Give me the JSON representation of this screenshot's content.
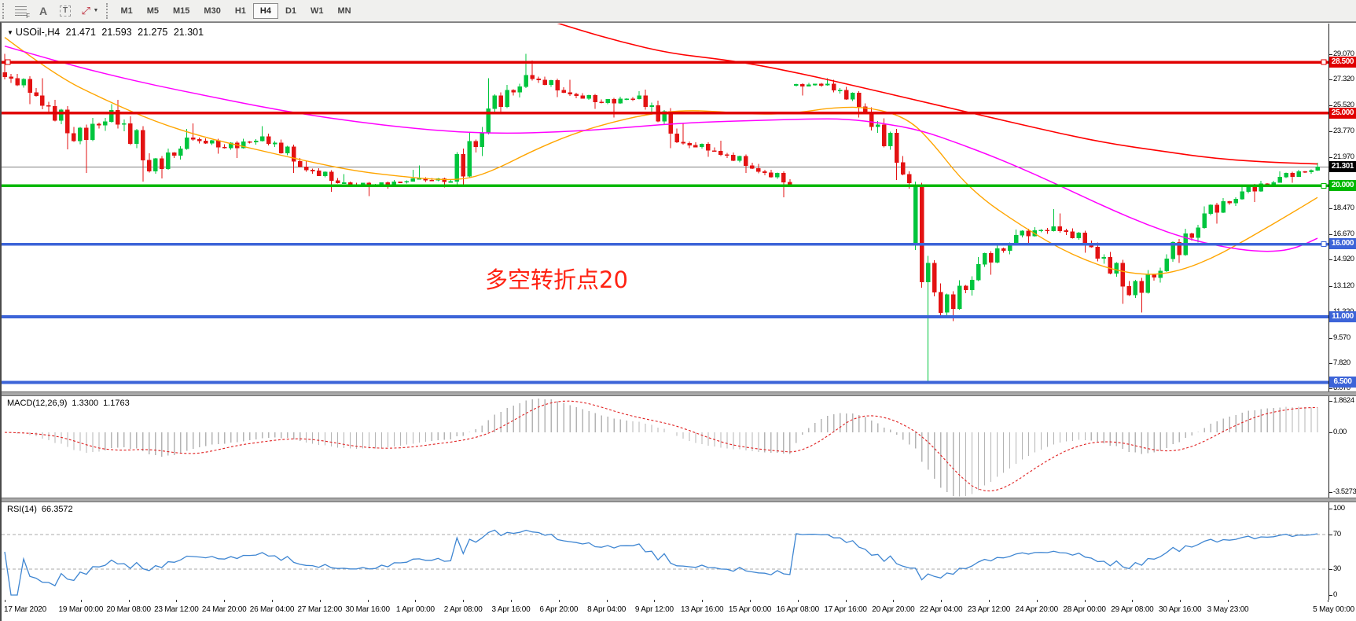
{
  "toolbar": {
    "icons": {
      "fibonacci_glyph": "F",
      "text_glyph": "A",
      "text_label_glyph": "T",
      "arrows_glyph": "⤢",
      "caret_glyph": "▼"
    },
    "timeframes": [
      "M1",
      "M5",
      "M15",
      "M30",
      "H1",
      "H4",
      "D1",
      "W1",
      "MN"
    ],
    "active_timeframe": "H4"
  },
  "chart": {
    "symbol_label": "USOil-,H4",
    "open": "21.471",
    "high": "21.593",
    "low": "21.275",
    "close": "21.301",
    "annotation": "多空转折点20"
  },
  "macd_panel": {
    "label": "MACD(12,26,9)",
    "value": "1.3300",
    "signal": "1.1763"
  },
  "rsi_panel": {
    "label": "RSI(14)",
    "value": "66.3572"
  },
  "chart_data": {
    "type": "candlestick",
    "symbol": "USOil-",
    "timeframe": "H4",
    "title": "USOil-,H4 21.471 21.593 21.275 21.301",
    "colors": {
      "bull": "#00c53e",
      "bear": "#e31212",
      "ma_fast": "#ffa500",
      "ma_medium": "#ff00ff",
      "ma_slow": "#ff0000",
      "hline_red": "#e00000",
      "hline_green": "#00b800",
      "hline_blue": "#3c64d8",
      "price_line": "#808080",
      "macd_histogram": "#b4b4b4",
      "macd_signal": "#e02020",
      "rsi_line": "#3f86d2"
    },
    "price_axis": {
      "top": 31.15,
      "bottom": 5.87,
      "ticks": [
        "29.070",
        "27.320",
        "25.520",
        "23.770",
        "21.970",
        "18.470",
        "16.670",
        "14.920",
        "13.120",
        "11.320",
        "9.570",
        "7.820",
        "6.070"
      ],
      "badges": [
        {
          "label": "28.500",
          "value": 28.5,
          "color": "#e00000"
        },
        {
          "label": "25.000",
          "value": 25.0,
          "color": "#e00000"
        },
        {
          "label": "21.301",
          "value": 21.301,
          "color": "#000000"
        },
        {
          "label": "20.000",
          "value": 20.0,
          "color": "#00b800"
        },
        {
          "label": "16.000",
          "value": 16.0,
          "color": "#3c64d8"
        },
        {
          "label": "11.000",
          "value": 11.0,
          "color": "#3c64d8"
        },
        {
          "label": "6.500",
          "value": 6.5,
          "color": "#3c64d8"
        }
      ]
    },
    "price_line": {
      "price": 21.301
    },
    "hlines": [
      {
        "price": 28.5,
        "color": "#e00000",
        "width": 3.5,
        "handles": [
          "left",
          "right"
        ]
      },
      {
        "price": 25.0,
        "color": "#e00000",
        "width": 3.5,
        "handles": []
      },
      {
        "price": 20.0,
        "color": "#00b800",
        "width": 3.5,
        "handles": [
          "right"
        ]
      },
      {
        "price": 16.0,
        "color": "#3c64d8",
        "width": 3.5,
        "handles": [
          "right"
        ]
      },
      {
        "price": 11.0,
        "color": "#3c64d8",
        "width": 4,
        "handles": []
      },
      {
        "price": 6.5,
        "color": "#3c64d8",
        "width": 4,
        "handles": []
      }
    ],
    "time_ticks": [
      "17 Mar 2020",
      "19 Mar 00:00",
      "20 Mar 08:00",
      "23 Mar 12:00",
      "24 Mar 20:00",
      "26 Mar 04:00",
      "27 Mar 12:00",
      "30 Mar 16:00",
      "1 Apr 00:00",
      "2 Apr 08:00",
      "3 Apr 16:00",
      "6 Apr 20:00",
      "8 Apr 04:00",
      "9 Apr 12:00",
      "13 Apr 16:00",
      "15 Apr 00:00",
      "16 Apr 08:00",
      "17 Apr 16:00",
      "20 Apr 20:00",
      "22 Apr 04:00",
      "23 Apr 12:00",
      "24 Apr 20:00",
      "28 Apr 00:00",
      "29 Apr 08:00",
      "30 Apr 16:00",
      "3 May 23:00",
      "5 May 00:00"
    ],
    "daily_candles": [
      {
        "d": "17 Mar",
        "o": 27.8,
        "h": 29.07,
        "l": 25.6,
        "c": 26.2
      },
      {
        "d": "18 Mar",
        "o": 26.2,
        "h": 27.4,
        "l": 22.5,
        "c": 23.1
      },
      {
        "d": "19 Mar",
        "o": 23.1,
        "h": 25.6,
        "l": 20.9,
        "c": 25.2
      },
      {
        "d": "20 Mar",
        "o": 25.2,
        "h": 25.9,
        "l": 20.3,
        "c": 21.0
      },
      {
        "d": "23 Mar",
        "o": 21.0,
        "h": 23.9,
        "l": 20.5,
        "c": 23.3
      },
      {
        "d": "24 Mar",
        "o": 23.3,
        "h": 24.3,
        "l": 22.2,
        "c": 22.6
      },
      {
        "d": "25 Mar",
        "o": 22.6,
        "h": 24.1,
        "l": 21.9,
        "c": 23.4
      },
      {
        "d": "26 Mar",
        "o": 23.4,
        "h": 23.6,
        "l": 20.9,
        "c": 21.3
      },
      {
        "d": "27 Mar",
        "o": 21.3,
        "h": 21.7,
        "l": 19.6,
        "c": 20.2
      },
      {
        "d": "30 Mar",
        "o": 20.2,
        "h": 20.8,
        "l": 19.3,
        "c": 20.0
      },
      {
        "d": "31 Mar",
        "o": 20.0,
        "h": 21.1,
        "l": 19.8,
        "c": 20.5
      },
      {
        "d": "1 Apr",
        "o": 20.5,
        "h": 21.4,
        "l": 19.9,
        "c": 20.3
      },
      {
        "d": "2 Apr",
        "o": 20.3,
        "h": 27.4,
        "l": 20.1,
        "c": 25.3
      },
      {
        "d": "3 Apr",
        "o": 25.3,
        "h": 29.07,
        "l": 24.9,
        "c": 27.6
      },
      {
        "d": "6 Apr",
        "o": 27.6,
        "h": 28.6,
        "l": 26.1,
        "c": 26.4
      },
      {
        "d": "7 Apr",
        "o": 26.4,
        "h": 27.3,
        "l": 25.3,
        "c": 25.7
      },
      {
        "d": "8 Apr",
        "o": 25.7,
        "h": 26.5,
        "l": 24.7,
        "c": 26.2
      },
      {
        "d": "9 Apr",
        "o": 26.2,
        "h": 26.6,
        "l": 22.6,
        "c": 23.0
      },
      {
        "d": "13 Apr",
        "o": 23.0,
        "h": 24.3,
        "l": 22.0,
        "c": 22.4
      },
      {
        "d": "14 Apr",
        "o": 22.4,
        "h": 23.1,
        "l": 20.9,
        "c": 21.2
      },
      {
        "d": "15 Apr",
        "o": 21.2,
        "h": 21.5,
        "l": 19.2,
        "c": 20.1
      },
      {
        "d": "16 Apr",
        "o": 26.9,
        "h": 27.4,
        "l": 26.2,
        "c": 27.0
      },
      {
        "d": "17 Apr",
        "o": 27.0,
        "h": 27.3,
        "l": 24.7,
        "c": 25.1
      },
      {
        "d": "20 Apr",
        "o": 25.1,
        "h": 25.4,
        "l": 20.4,
        "c": 20.8
      },
      {
        "d": "21 Apr",
        "bars": [
          [
            20.8,
            21.0,
            19.8,
            20.2
          ],
          [
            15.9,
            20.3,
            15.6,
            20.1
          ],
          [
            20.1,
            20.2,
            13.0,
            13.4
          ],
          [
            13.4,
            15.2,
            6.5,
            14.7
          ],
          [
            14.7,
            14.9,
            12.4,
            12.7
          ],
          [
            12.7,
            13.3,
            10.9,
            11.3
          ]
        ]
      },
      {
        "d": "22 Apr",
        "o": 11.3,
        "h": 15.1,
        "l": 10.7,
        "c": 14.6
      },
      {
        "d": "23 Apr",
        "o": 14.6,
        "h": 17.0,
        "l": 13.9,
        "c": 16.6
      },
      {
        "d": "24 Apr",
        "o": 16.6,
        "h": 18.4,
        "l": 15.9,
        "c": 17.2
      },
      {
        "d": "27 Apr",
        "o": 17.2,
        "h": 18.1,
        "l": 15.4,
        "c": 15.8
      },
      {
        "d": "28 Apr",
        "o": 15.8,
        "h": 16.1,
        "l": 11.9,
        "c": 12.5
      },
      {
        "d": "29 Apr",
        "o": 12.5,
        "h": 15.3,
        "l": 11.3,
        "c": 15.0
      },
      {
        "d": "30 Apr",
        "o": 15.0,
        "h": 18.6,
        "l": 14.7,
        "c": 18.1
      },
      {
        "d": "1 May",
        "o": 18.1,
        "h": 20.0,
        "l": 17.4,
        "c": 19.6
      },
      {
        "d": "4 May",
        "o": 19.6,
        "h": 21.0,
        "l": 18.9,
        "c": 20.6
      },
      {
        "d": "5 May",
        "o": 20.6,
        "h": 21.6,
        "l": 20.2,
        "c": 21.301
      }
    ],
    "moving_averages": [
      {
        "name": "ma-fast-orange",
        "color": "#ffa500",
        "width": 1.4,
        "points": [
          [
            0,
            30.2
          ],
          [
            8,
            27.6
          ],
          [
            16,
            25.9
          ],
          [
            24,
            24.4
          ],
          [
            32,
            23.3
          ],
          [
            40,
            22.5
          ],
          [
            48,
            21.7
          ],
          [
            56,
            21.0
          ],
          [
            64,
            20.6
          ],
          [
            70,
            20.4
          ],
          [
            74,
            20.5
          ],
          [
            78,
            21.1
          ],
          [
            84,
            22.4
          ],
          [
            90,
            23.5
          ],
          [
            96,
            24.3
          ],
          [
            102,
            24.9
          ],
          [
            108,
            25.2
          ],
          [
            114,
            25.1
          ],
          [
            120,
            24.9
          ],
          [
            126,
            25.0
          ],
          [
            132,
            25.4
          ],
          [
            138,
            25.4
          ],
          [
            144,
            24.6
          ],
          [
            148,
            22.8
          ],
          [
            152,
            20.6
          ],
          [
            156,
            19.0
          ],
          [
            160,
            17.8
          ],
          [
            164,
            16.7
          ],
          [
            168,
            15.7
          ],
          [
            172,
            14.9
          ],
          [
            176,
            14.3
          ],
          [
            180,
            13.95
          ],
          [
            184,
            13.9
          ],
          [
            188,
            14.3
          ],
          [
            192,
            15.0
          ],
          [
            196,
            15.9
          ],
          [
            200,
            16.9
          ],
          [
            204,
            17.9
          ],
          [
            209,
            19.2
          ]
        ]
      },
      {
        "name": "ma-medium-magenta",
        "color": "#ff00ff",
        "width": 1.5,
        "points": [
          [
            0,
            29.6
          ],
          [
            8,
            28.6
          ],
          [
            16,
            27.7
          ],
          [
            24,
            26.9
          ],
          [
            32,
            26.2
          ],
          [
            40,
            25.5
          ],
          [
            48,
            24.9
          ],
          [
            56,
            24.4
          ],
          [
            64,
            24.0
          ],
          [
            72,
            23.7
          ],
          [
            80,
            23.6
          ],
          [
            88,
            23.7
          ],
          [
            96,
            23.9
          ],
          [
            104,
            24.2
          ],
          [
            112,
            24.4
          ],
          [
            120,
            24.5
          ],
          [
            128,
            24.6
          ],
          [
            134,
            24.6
          ],
          [
            140,
            24.3
          ],
          [
            146,
            23.8
          ],
          [
            152,
            22.9
          ],
          [
            158,
            21.9
          ],
          [
            164,
            20.8
          ],
          [
            170,
            19.6
          ],
          [
            176,
            18.4
          ],
          [
            182,
            17.3
          ],
          [
            188,
            16.4
          ],
          [
            194,
            15.8
          ],
          [
            199,
            15.5
          ],
          [
            203,
            15.5
          ],
          [
            206,
            15.8
          ],
          [
            209,
            16.4
          ]
        ]
      },
      {
        "name": "ma-slow-red",
        "color": "#ff0000",
        "width": 1.6,
        "points": [
          [
            82,
            32.0
          ],
          [
            90,
            30.9
          ],
          [
            98,
            29.9
          ],
          [
            106,
            29.1
          ],
          [
            114,
            28.7
          ],
          [
            120,
            28.3
          ],
          [
            128,
            27.6
          ],
          [
            136,
            26.8
          ],
          [
            144,
            26.0
          ],
          [
            152,
            25.2
          ],
          [
            160,
            24.4
          ],
          [
            168,
            23.6
          ],
          [
            176,
            22.9
          ],
          [
            184,
            22.4
          ],
          [
            192,
            21.9
          ],
          [
            200,
            21.65
          ],
          [
            209,
            21.5
          ]
        ]
      }
    ],
    "indicators": {
      "macd": {
        "label": "MACD(12,26,9)",
        "fast": 12,
        "slow": 26,
        "signal_period": 9,
        "value": "1.3300",
        "signal_value": "1.1763",
        "scale": [
          {
            "label": "1.8624",
            "value": 1.8624
          },
          {
            "label": "0.00",
            "value": 0
          },
          {
            "label": "-3.5273",
            "value": -3.5273
          }
        ],
        "range_top": 2.0,
        "range_bottom": -3.6
      },
      "rsi": {
        "label": "RSI(14)",
        "period": 14,
        "value": "66.3572",
        "levels": [
          {
            "label": "100",
            "value": 100,
            "dashed": false
          },
          {
            "label": "70",
            "value": 70,
            "dashed": true
          },
          {
            "label": "30",
            "value": 30,
            "dashed": true
          },
          {
            "label": "0",
            "value": 0,
            "dashed": false
          }
        ]
      }
    },
    "annotation": {
      "text": "多空转折点20",
      "color": "#ff2212"
    }
  }
}
